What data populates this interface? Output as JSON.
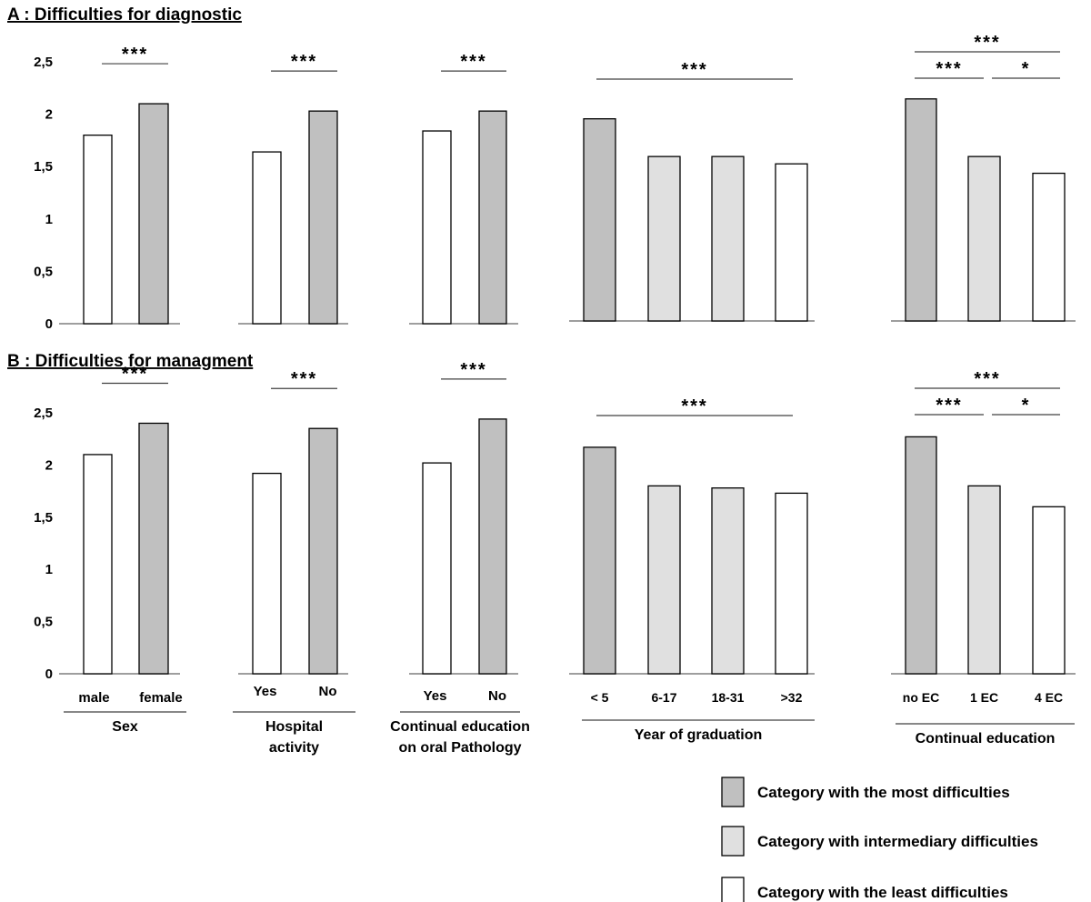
{
  "chart_data": [
    {
      "type": "bar",
      "title": "A : Difficulties for diagnostic",
      "ylim": [
        0,
        2.5
      ],
      "yticks": [
        "0",
        "0,5",
        "1",
        "1,5",
        "2",
        "2,5"
      ],
      "groups": [
        {
          "categories": [
            "male",
            "female"
          ],
          "values": [
            1.8,
            2.1
          ],
          "levels": [
            "least",
            "most"
          ],
          "significance": [
            {
              "label": "***"
            }
          ]
        },
        {
          "categories": [
            "Yes",
            "No"
          ],
          "values": [
            1.64,
            2.03
          ],
          "levels": [
            "least",
            "most"
          ],
          "significance": [
            {
              "label": "***"
            }
          ]
        },
        {
          "categories": [
            "Yes",
            "No"
          ],
          "values": [
            1.84,
            2.03
          ],
          "levels": [
            "least",
            "most"
          ],
          "significance": [
            {
              "label": "***"
            }
          ]
        },
        {
          "categories": [
            "< 5",
            "6-17",
            "18-31",
            ">32"
          ],
          "values": [
            1.93,
            1.57,
            1.57,
            1.5
          ],
          "levels": [
            "most",
            "inter",
            "inter",
            "least"
          ],
          "significance": [
            {
              "label": "***"
            }
          ]
        },
        {
          "categories": [
            "no EC",
            "1 EC",
            "4 EC"
          ],
          "values": [
            2.12,
            1.57,
            1.41
          ],
          "levels": [
            "most",
            "inter",
            "least"
          ],
          "significance": [
            {
              "label": "***"
            },
            {
              "label": "***"
            },
            {
              "label": "*"
            }
          ]
        }
      ]
    },
    {
      "type": "bar",
      "title": "B : Difficulties for managment",
      "ylim": [
        0,
        2.5
      ],
      "yticks": [
        "0",
        "0,5",
        "1",
        "1,5",
        "2",
        "2,5"
      ],
      "groups": [
        {
          "categories": [
            "male",
            "female"
          ],
          "values": [
            2.1,
            2.4
          ],
          "levels": [
            "least",
            "most"
          ],
          "significance": [
            {
              "label": "***"
            }
          ]
        },
        {
          "categories": [
            "Yes",
            "No"
          ],
          "values": [
            1.92,
            2.35
          ],
          "levels": [
            "least",
            "most"
          ],
          "significance": [
            {
              "label": "***"
            }
          ]
        },
        {
          "categories": [
            "Yes",
            "No"
          ],
          "values": [
            2.02,
            2.44
          ],
          "levels": [
            "least",
            "most"
          ],
          "significance": [
            {
              "label": "***"
            }
          ]
        },
        {
          "categories": [
            "< 5",
            "6-17",
            "18-31",
            ">32"
          ],
          "values": [
            2.17,
            1.8,
            1.78,
            1.73
          ],
          "levels": [
            "most",
            "inter",
            "inter",
            "least"
          ],
          "significance": [
            {
              "label": "***"
            }
          ]
        },
        {
          "categories": [
            "no EC",
            "1 EC",
            "4 EC"
          ],
          "values": [
            2.27,
            1.8,
            1.6
          ],
          "levels": [
            "most",
            "inter",
            "least"
          ],
          "significance": [
            {
              "label": "***"
            },
            {
              "label": "***"
            },
            {
              "label": "*"
            }
          ]
        }
      ]
    }
  ],
  "group_titles": [
    [
      "Sex"
    ],
    [
      "Hospital",
      "activity"
    ],
    [
      "Continual  education",
      "on oral Pathology"
    ],
    [
      "Year of graduation"
    ],
    [
      "Continual  education"
    ]
  ],
  "legend": [
    {
      "level": "most",
      "label": "Category with the most difficulties"
    },
    {
      "level": "inter",
      "label": "Category with intermediary difficulties"
    },
    {
      "level": "least",
      "label": "Category with the least difficulties"
    }
  ],
  "colors": {
    "most": "#c0c0c0",
    "inter": "#e0e0e0",
    "least": "#ffffff",
    "stroke": "#000000",
    "axis": "#7f7f7f"
  }
}
